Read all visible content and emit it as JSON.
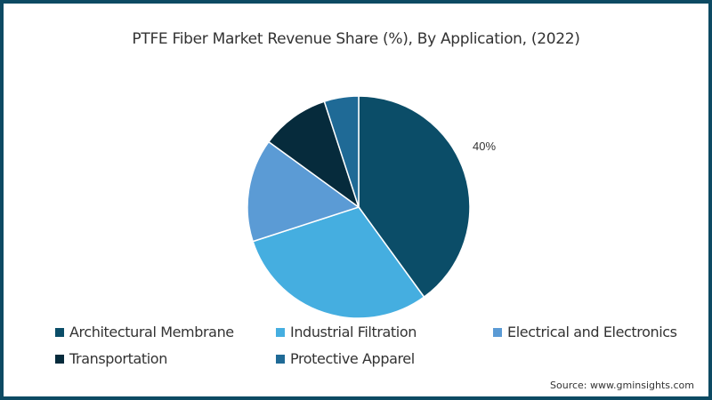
{
  "chart_data": {
    "type": "pie",
    "title": "PTFE Fiber Market Revenue Share (%), By Application, (2022)",
    "categories": [
      "Architectural Membrane",
      "Industrial Filtration",
      "Electrical and Electronics",
      "Transportation",
      "Protective Apparel"
    ],
    "values": [
      40,
      30,
      15,
      10,
      5
    ],
    "colors": [
      "#0b4d68",
      "#45aee0",
      "#5b9bd5",
      "#062b3c",
      "#1f6a96"
    ],
    "data_labels": [
      {
        "category": "Architectural Membrane",
        "text": "40%"
      }
    ],
    "legend_position": "bottom",
    "start_angle": "12 o'clock, clockwise"
  },
  "title": "PTFE Fiber Market Revenue Share (%), By Application, (2022)",
  "pct_label": "40%",
  "legend": [
    {
      "label": "Architectural Membrane",
      "color": "#0b4d68"
    },
    {
      "label": "Industrial Filtration",
      "color": "#45aee0"
    },
    {
      "label": "Electrical and Electronics",
      "color": "#5b9bd5"
    },
    {
      "label": "Transportation",
      "color": "#062b3c"
    },
    {
      "label": "Protective Apparel",
      "color": "#1f6a96"
    }
  ],
  "source": "Source: www.gminsights.com"
}
